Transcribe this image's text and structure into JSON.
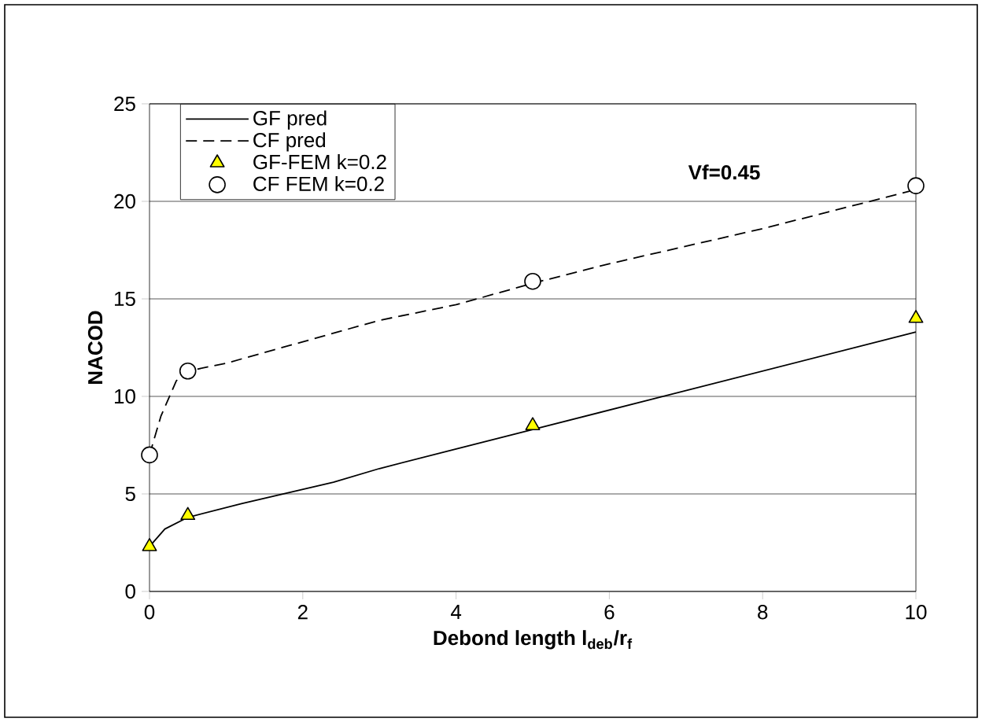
{
  "chart_data": {
    "type": "line",
    "xlabel": "Debond length l$_{deb}$/r$_{f}$",
    "ylabel": "NACOD",
    "annotations": [
      "Vf=0.45"
    ],
    "series": [
      {
        "name": "GF pred",
        "color": "#000000",
        "line_style": "solid",
        "marker": "none",
        "x": [
          0,
          0.2,
          0.5,
          1.2,
          2.4,
          3,
          4,
          5,
          10
        ],
        "values": [
          2.3,
          3.2,
          3.8,
          4.5,
          5.6,
          6.3,
          7.3,
          8.3,
          13.3
        ]
      },
      {
        "name": "CF pred",
        "color": "#000000",
        "line_style": "dashed",
        "marker": "none",
        "x": [
          0,
          0.15,
          0.35,
          0.5,
          1,
          2,
          3,
          4,
          5,
          6,
          7,
          8,
          10
        ],
        "values": [
          7.0,
          9.0,
          10.8,
          11.3,
          11.7,
          12.8,
          13.9,
          14.7,
          15.8,
          16.8,
          17.7,
          18.6,
          20.6
        ]
      },
      {
        "name": "GF-FEM k=0.2",
        "type": "scatter",
        "color": "#ffff00",
        "marker": "triangle",
        "x": [
          0,
          0.5,
          5,
          10
        ],
        "values": [
          2.3,
          3.9,
          8.5,
          14.0
        ]
      },
      {
        "name": "CF FEM k=0.2",
        "type": "scatter",
        "color": "#ffffff",
        "marker": "circle",
        "x": [
          0,
          0.5,
          5,
          10
        ],
        "values": [
          7.0,
          11.3,
          15.9,
          20.8
        ]
      }
    ],
    "xlim": [
      0,
      10
    ],
    "xticks": [
      0,
      2,
      4,
      6,
      8,
      10
    ],
    "ylim": [
      0,
      25
    ],
    "yticks": [
      0,
      5,
      10,
      15,
      20,
      25
    ],
    "grid": "y",
    "legend": "top left"
  }
}
